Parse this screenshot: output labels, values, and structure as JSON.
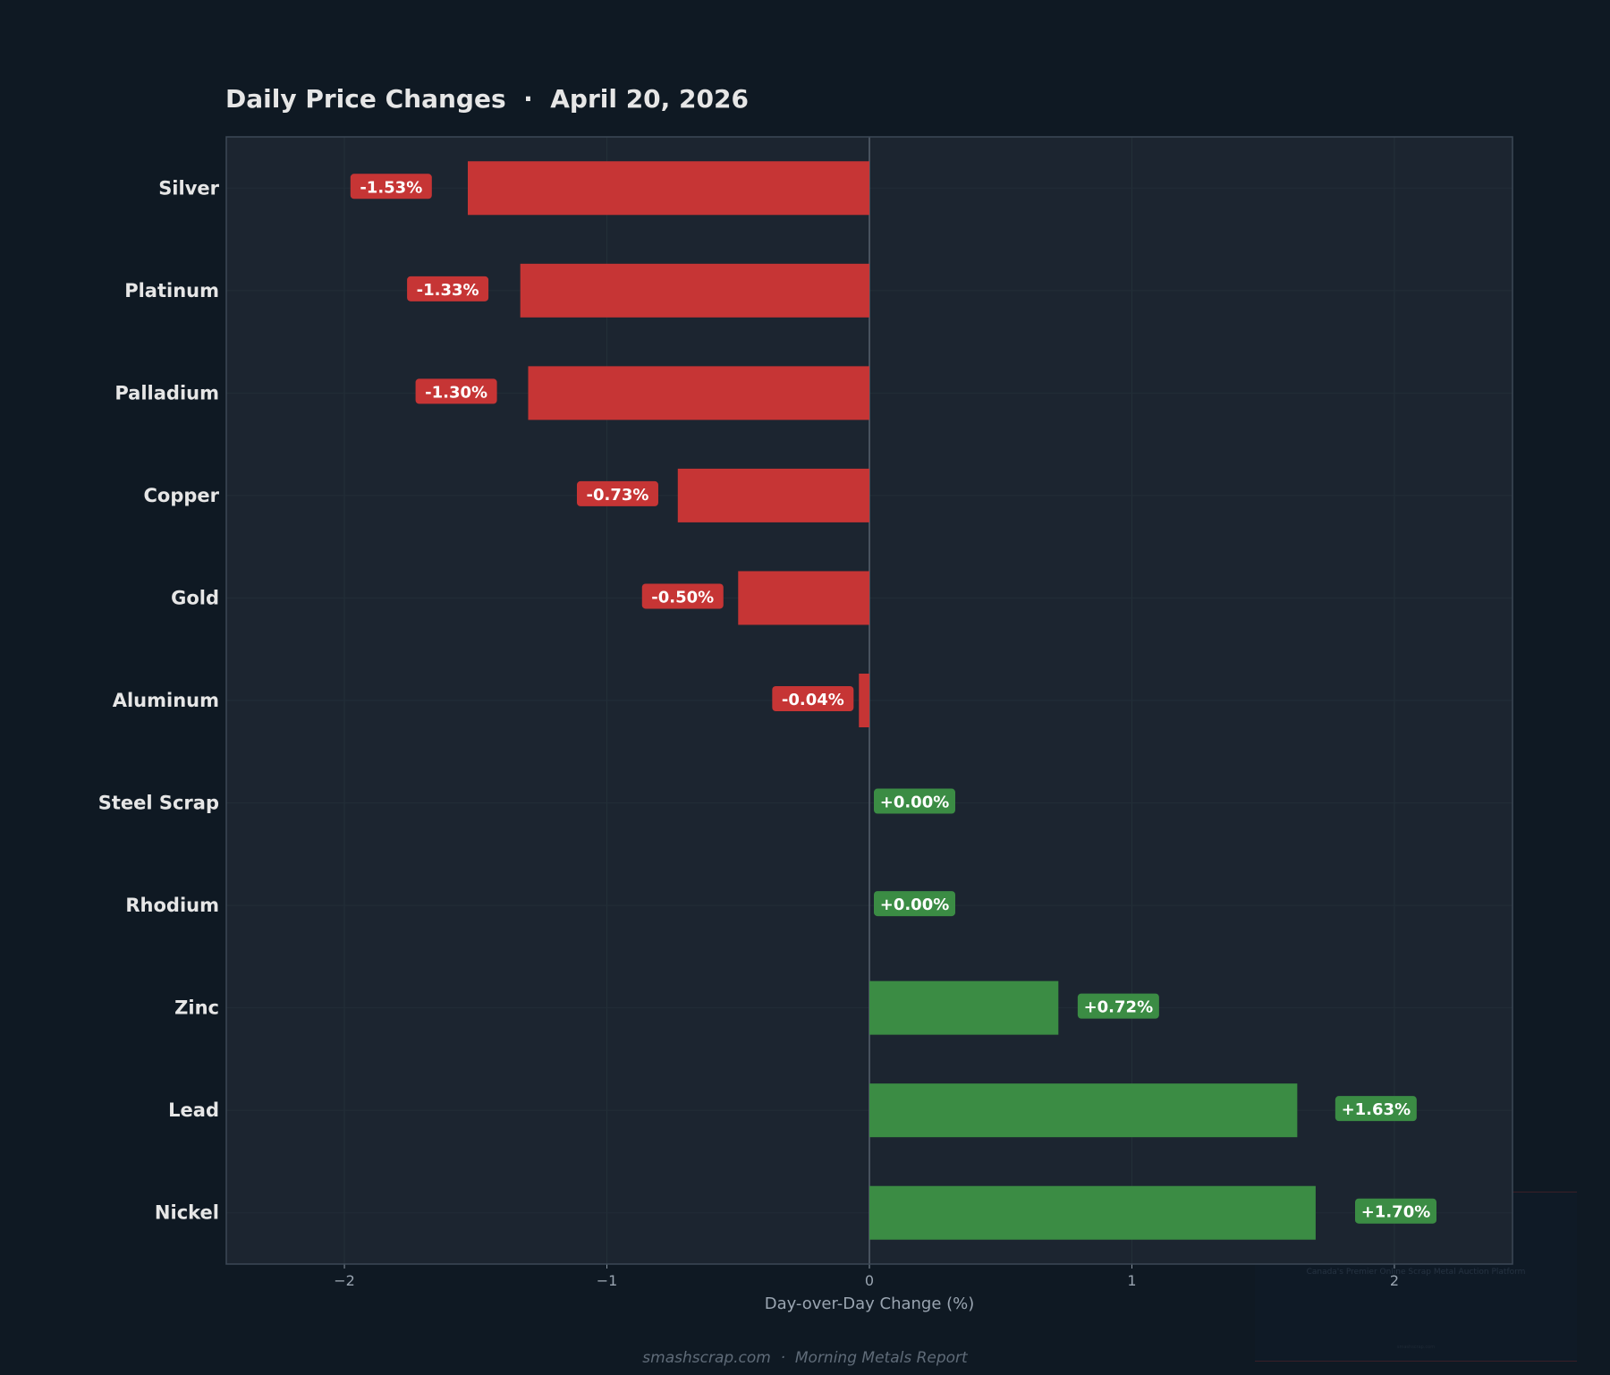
{
  "chart_data": {
    "type": "bar",
    "orientation": "horizontal",
    "title": "Daily Price Changes  ·  April 20, 2026",
    "xlabel": "Day-over-Day Change (%)",
    "ylabel": "",
    "xlim": [
      -2.45,
      2.45
    ],
    "xticks": [
      -2,
      -1,
      0,
      1,
      2
    ],
    "xtick_labels": [
      "−2",
      "−1",
      "0",
      "1",
      "2"
    ],
    "grid": true,
    "categories": [
      "Silver",
      "Platinum",
      "Palladium",
      "Copper",
      "Gold",
      "Aluminum",
      "Steel Scrap",
      "Rhodium",
      "Zinc",
      "Lead",
      "Nickel"
    ],
    "values": [
      -1.53,
      -1.33,
      -1.3,
      -0.73,
      -0.5,
      -0.04,
      0.0,
      0.0,
      0.72,
      1.63,
      1.7
    ],
    "data_labels": [
      "-1.53%",
      "-1.33%",
      "-1.30%",
      "-0.73%",
      "-0.50%",
      "-0.04%",
      "+0.00%",
      "+0.00%",
      "+0.72%",
      "+1.63%",
      "+1.70%"
    ],
    "colors": {
      "negative": "#c63535",
      "positive": "#3b8c44",
      "background": "#0f1923",
      "plot_background": "#1c2530"
    }
  },
  "footer": "smashscrap.com  ·  Morning Metals Report",
  "watermark": {
    "tagline": "Canada's Premier Online Scrap Metal Auction Platform",
    "url": "smashscrap.com"
  }
}
